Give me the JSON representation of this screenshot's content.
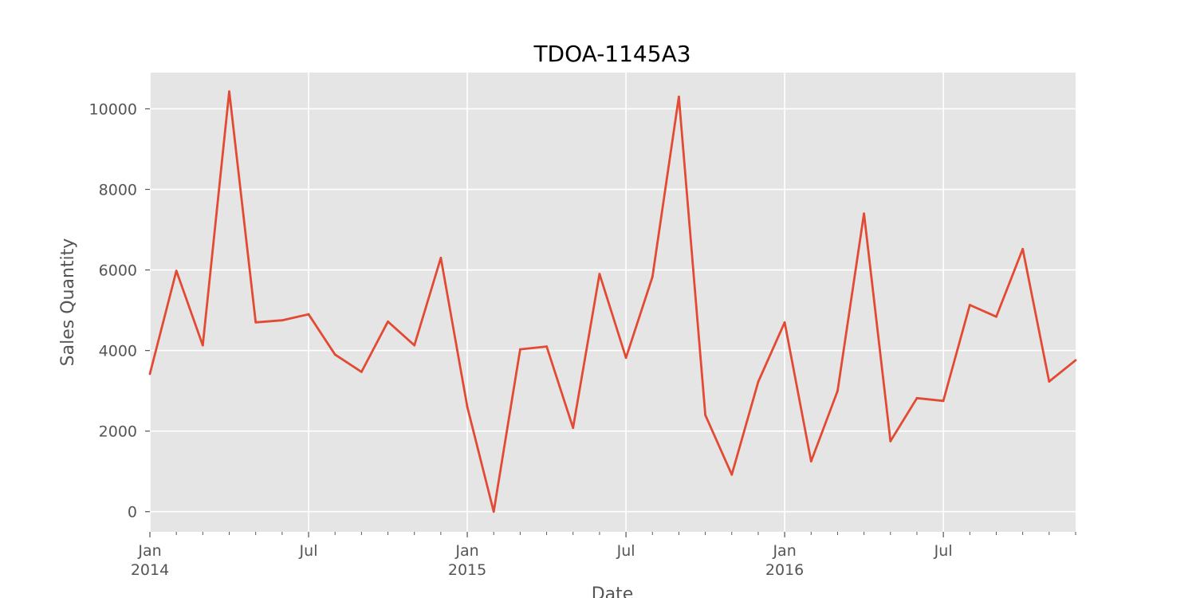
{
  "chart_data": {
    "type": "line",
    "title": "TDOA-1145A3",
    "xlabel": "Date",
    "ylabel": "Sales Quantity",
    "grid": true,
    "legend": "none",
    "colors": {
      "line": "#E24A33",
      "plot_background": "#E5E5E5",
      "grid": "#FFFFFF",
      "text": "#555555"
    },
    "xlim": [
      "2014-01",
      "2016-12"
    ],
    "ylim": [
      -500,
      10900
    ],
    "y_ticks": [
      0,
      2000,
      4000,
      6000,
      8000,
      10000
    ],
    "x_ticks": [
      {
        "date": "2014-01",
        "label": "Jan",
        "sublabel": "2014"
      },
      {
        "date": "2014-07",
        "label": "Jul",
        "sublabel": ""
      },
      {
        "date": "2015-01",
        "label": "Jan",
        "sublabel": "2015"
      },
      {
        "date": "2015-07",
        "label": "Jul",
        "sublabel": ""
      },
      {
        "date": "2016-01",
        "label": "Jan",
        "sublabel": "2016"
      },
      {
        "date": "2016-07",
        "label": "Jul",
        "sublabel": ""
      }
    ],
    "x": [
      "2014-01",
      "2014-02",
      "2014-03",
      "2014-04",
      "2014-05",
      "2014-06",
      "2014-07",
      "2014-08",
      "2014-09",
      "2014-10",
      "2014-11",
      "2014-12",
      "2015-01",
      "2015-02",
      "2015-03",
      "2015-04",
      "2015-05",
      "2015-06",
      "2015-07",
      "2015-08",
      "2015-09",
      "2015-10",
      "2015-11",
      "2015-12",
      "2016-01",
      "2016-02",
      "2016-03",
      "2016-04",
      "2016-05",
      "2016-06",
      "2016-07",
      "2016-08",
      "2016-09",
      "2016-10",
      "2016-11",
      "2016-12"
    ],
    "series": [
      {
        "values": [
          3420,
          5980,
          4130,
          10430,
          4700,
          4750,
          4900,
          3900,
          3470,
          4720,
          4130,
          6300,
          2600,
          0,
          4030,
          4100,
          2080,
          5900,
          3820,
          5830,
          10300,
          2400,
          920,
          3220,
          4700,
          1250,
          3000,
          7400,
          1750,
          2820,
          2750,
          5130,
          4840,
          6520,
          3230,
          3760
        ]
      }
    ]
  }
}
